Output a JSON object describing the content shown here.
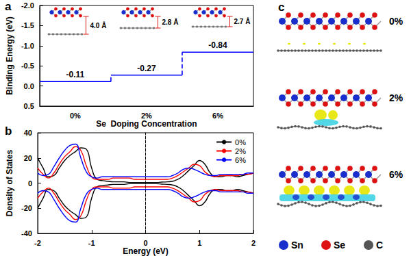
{
  "chart_data": [
    {
      "type": "line",
      "title": "a",
      "categories": [
        "0%",
        "2%",
        "6%"
      ],
      "values": [
        -0.11,
        -0.27,
        -0.84
      ],
      "color": "#0000ff",
      "data_labels": true,
      "xlabel": "Se  Doping Concentration",
      "ylabel": "Binding Energy (eV)",
      "ylim": [
        0.5,
        -2.0
      ],
      "yticks": [
        {
          "value": -2,
          "label": "-2.0"
        },
        -1.5,
        {
          "value": -1,
          "label": "-1.0"
        },
        -0.5,
        {
          "value": 0,
          "label": "0.0"
        },
        0.5
      ],
      "grid": false,
      "annotations": [
        "4.0 Å",
        "2.8 Å",
        "2.7 Å"
      ]
    },
    {
      "type": "line",
      "title": "b",
      "x": [
        -2,
        -1.9,
        -1.8,
        -1.7,
        -1.6,
        -1.5,
        -1.4,
        -1.3,
        -1.2,
        -1.1,
        -1,
        -0.9,
        -0.8,
        -0.7,
        -0.6,
        -0.5,
        -0.4,
        -0.3,
        -0.2,
        -0.1,
        0,
        0.1,
        0.2,
        0.3,
        0.4,
        0.5,
        0.6,
        0.7,
        0.8,
        0.9,
        1,
        1.1,
        1.2,
        1.3,
        1.4,
        1.5,
        1.6,
        1.7,
        1.8,
        1.9,
        2
      ],
      "series": [
        {
          "name": "0%",
          "color": "#000000",
          "values": [
            20,
            12,
            5,
            6,
            12,
            18,
            22,
            25,
            28,
            27,
            12,
            3,
            2,
            1.5,
            1,
            1,
            1,
            0.5,
            0.5,
            0.5,
            0.5,
            0.5,
            0.5,
            0.8,
            1,
            1.5,
            3,
            6,
            10,
            14,
            18,
            15,
            8,
            5,
            5,
            6,
            6,
            5,
            6,
            7,
            8
          ],
          "values_down": [
            -20,
            -12,
            -5,
            -6,
            -12,
            -18,
            -22,
            -25,
            -28,
            -27,
            -12,
            -3,
            -2,
            -1.5,
            -1,
            -1,
            -1,
            -0.5,
            -0.5,
            -0.5,
            -0.5,
            -0.5,
            -0.5,
            -0.8,
            -1,
            -1.5,
            -3,
            -6,
            -10,
            -14,
            -18,
            -15,
            -8,
            -5,
            -5,
            -6,
            -6,
            -5,
            -6,
            -7,
            -8
          ]
        },
        {
          "name": "2%",
          "color": "#ff0000",
          "values": [
            12,
            7,
            4,
            8,
            15,
            21,
            25,
            29,
            26,
            14,
            5,
            3,
            3,
            3,
            4,
            4,
            4,
            4,
            3,
            3,
            3,
            3,
            3,
            3,
            3,
            4,
            6,
            9,
            12,
            15,
            14,
            9,
            6,
            5,
            6,
            6,
            6,
            6,
            7,
            7,
            8
          ],
          "values_down": [
            -12,
            -7,
            -4,
            -8,
            -15,
            -21,
            -25,
            -29,
            -26,
            -14,
            -5,
            -3,
            -3,
            -3,
            -4,
            -4,
            -4,
            -4,
            -3,
            -3,
            -3,
            -3,
            -3,
            -3,
            -3,
            -4,
            -6,
            -9,
            -12,
            -15,
            -14,
            -9,
            -6,
            -5,
            -6,
            -6,
            -6,
            -6,
            -7,
            -7,
            -8
          ]
        },
        {
          "name": "6%",
          "color": "#0000ff",
          "values": [
            8,
            6,
            7,
            13,
            20,
            26,
            30,
            31,
            20,
            9,
            5,
            4,
            5,
            5,
            5,
            5,
            5,
            5,
            5,
            5,
            5,
            5,
            5,
            5,
            5,
            6,
            8,
            11,
            12,
            11,
            9,
            7,
            6,
            6,
            7,
            7,
            7,
            7,
            7,
            8,
            8
          ],
          "values_down": [
            -8,
            -6,
            -7,
            -13,
            -20,
            -26,
            -30,
            -31,
            -20,
            -9,
            -5,
            -4,
            -5,
            -5,
            -5,
            -5,
            -5,
            -5,
            -5,
            -5,
            -5,
            -5,
            -5,
            -5,
            -5,
            -6,
            -8,
            -11,
            -12,
            -11,
            -9,
            -7,
            -6,
            -6,
            -7,
            -7,
            -7,
            -7,
            -7,
            -8,
            -8
          ]
        }
      ],
      "xlabel": "Energy (eV)",
      "ylabel": "Density of States",
      "xlim": [
        -2,
        2
      ],
      "xticks": [
        -2,
        -1,
        0,
        1,
        2
      ],
      "ylim": [
        -40,
        40
      ],
      "yticks": [
        -40,
        -20,
        0,
        20,
        40
      ],
      "grid": false,
      "legend": "upper right"
    }
  ],
  "panel_c": {
    "label": "c",
    "structures": [
      "0%",
      "2%",
      "6%"
    ],
    "legend": [
      {
        "name": "Sn",
        "color": "#1a2ecc"
      },
      {
        "name": "Se",
        "color": "#dd1111"
      },
      {
        "name": "C",
        "color": "#555555"
      }
    ]
  }
}
